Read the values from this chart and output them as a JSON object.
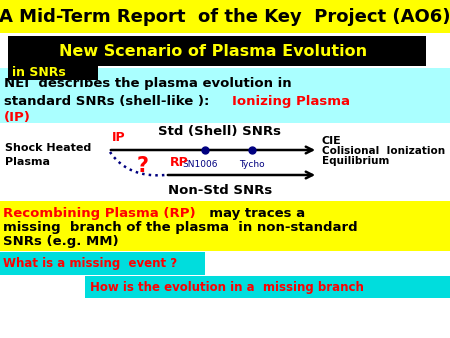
{
  "title": "A Mid-Term Report  of the Key  Project (AO6)",
  "title_fontsize": 13,
  "title_color": "#000000",
  "title_bg": "#ffff00",
  "bg_color": "#ffffff",
  "banner_text": "New Scenario of Plasma Evolution",
  "banner_sub": "in SNRs",
  "banner_bg": "#000000",
  "banner_fg": "#ffff00",
  "nei_line1": "NEI  describes the plasma evolution in",
  "nei_line2": "standard SNRs (shell-like ):   ",
  "nei_ip_text": "Ionizing Plasma",
  "nei_ip2_text": "(IP)",
  "nei_color": "#000000",
  "nei_ip_color": "#ff0000",
  "nei_bg": "#aaffff",
  "std_label": "Std (Shell) SNRs",
  "shock_label": "Shock Heated\nPlasma",
  "ip_label": "IP",
  "ip_color": "#ff0000",
  "cie_line1": "CIE",
  "cie_line2": "Colisional  Ionization",
  "cie_line3": "Equilibrium",
  "cie_color": "#000000",
  "sn1006_label": "SN1006",
  "tycho_label": "Tycho",
  "dot_color": "#000080",
  "arrow_color": "#000000",
  "rp_label": "RP",
  "rp_color": "#ff0000",
  "question_color": "#ff0000",
  "nonstd_label": "Non-Std SNRs",
  "recomb_text1": "Recombining Plasma (RP)",
  "recomb_text1_color": "#ff0000",
  "recomb_text2a": "  may traces a",
  "recomb_text2b": "missing  branch of the plasma  in non-standard",
  "recomb_text2c": "SNRs (e.g. MM)",
  "recomb_color": "#000000",
  "recomb_bg": "#ffff00",
  "missing_text": "What is a missing  event ?",
  "missing_bg": "#00dddd",
  "missing_color": "#ff0000",
  "how_text": "How is the evolution in a  missing branch",
  "how_bg": "#00dddd",
  "how_color": "#ff0000"
}
